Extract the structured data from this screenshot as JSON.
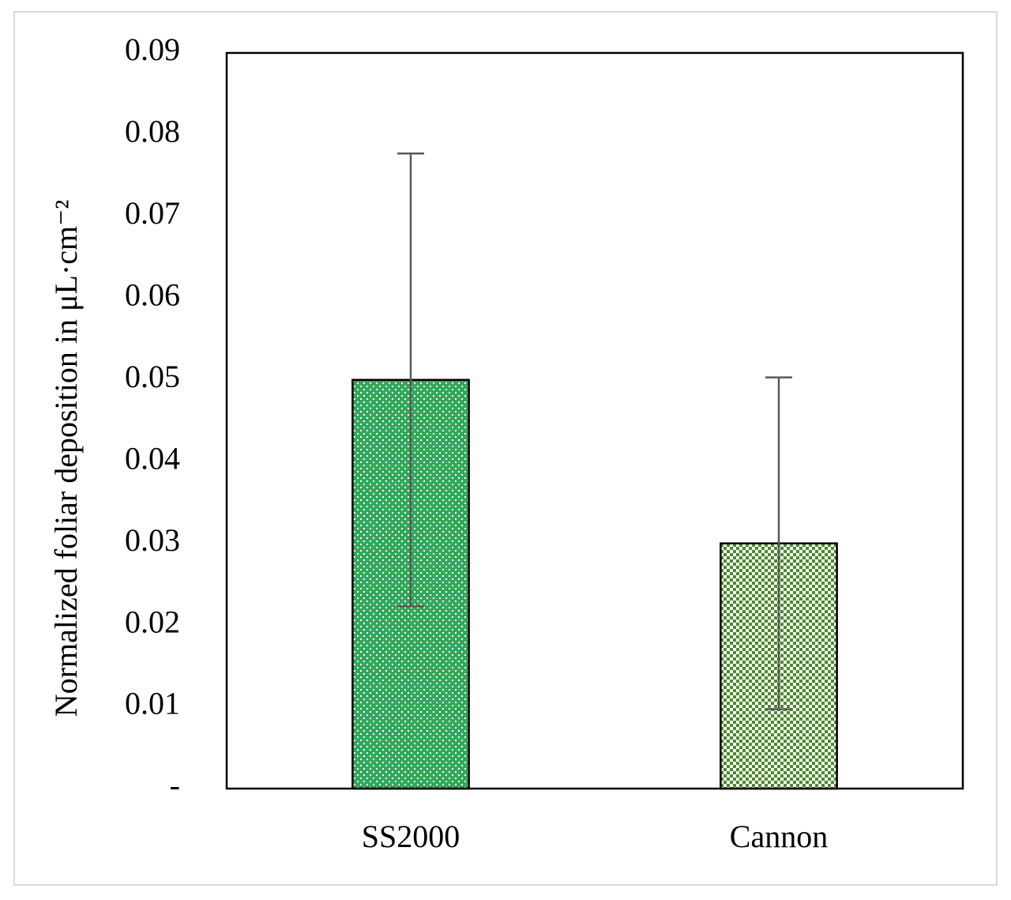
{
  "chart_data": {
    "type": "bar",
    "ylabel": "Normalized foliar deposition in μL·cm⁻²",
    "categories": [
      "SS2000",
      "Cannon"
    ],
    "series": [
      {
        "values": [
          0.05,
          0.03
        ],
        "errors": [
          0.0277,
          0.0203
        ],
        "colors": [
          "#33a85c",
          "#4b8b2b"
        ]
      }
    ],
    "ylim": [
      0,
      0.09
    ],
    "yticks": [
      {
        "value": 0,
        "label": "-"
      },
      0.01,
      0.02,
      0.03,
      0.04,
      0.05,
      0.06,
      0.07,
      0.08,
      0.09
    ]
  }
}
